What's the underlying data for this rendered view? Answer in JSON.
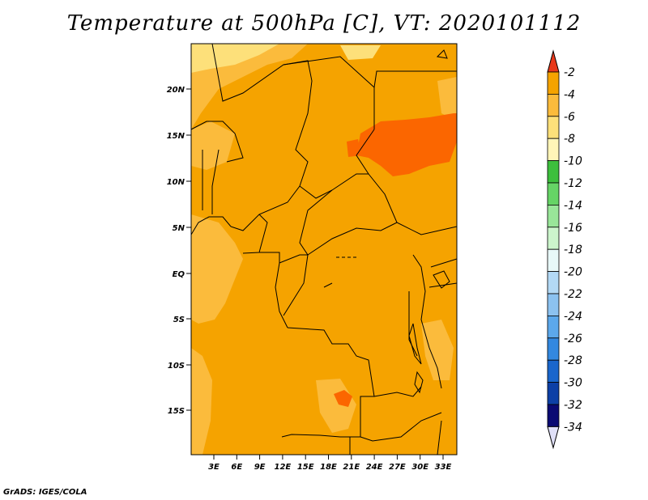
{
  "title": "Temperature at 500hPa [C], VT: 2020101112",
  "credit": "GrADS: IGES/COLA",
  "map": {
    "lon_ticks": [
      "3E",
      "6E",
      "9E",
      "12E",
      "15E",
      "18E",
      "21E",
      "24E",
      "27E",
      "30E",
      "33E"
    ],
    "lat_ticks": [
      "20N",
      "15N",
      "10N",
      "5N",
      "EQ",
      "5S",
      "10S",
      "15S"
    ],
    "base_fill_color": "#f5a300",
    "warm_patch_color": "#fb6600",
    "light_patch_color": "#fbbb3c",
    "pale_patch_color": "#fde07a"
  },
  "colorbar": {
    "labels": [
      "-2",
      "-4",
      "-6",
      "-8",
      "-10",
      "-12",
      "-14",
      "-16",
      "-18",
      "-20",
      "-22",
      "-24",
      "-26",
      "-28",
      "-30",
      "-32",
      "-34"
    ],
    "colors": [
      "#fb6000",
      "#f5a300",
      "#fbbb3c",
      "#fde07a",
      "#fff5b8",
      "#3dbf3d",
      "#66d466",
      "#99e699",
      "#ccf5cc",
      "#e8f8f8",
      "#b3d9f5",
      "#8cc2f0",
      "#5ca8eb",
      "#3388e0",
      "#1a66cc",
      "#0d40a6",
      "#0a0a73"
    ],
    "top_arrow_color": "#e8381a",
    "bottom_arrow_color": "#e0e0f8"
  }
}
